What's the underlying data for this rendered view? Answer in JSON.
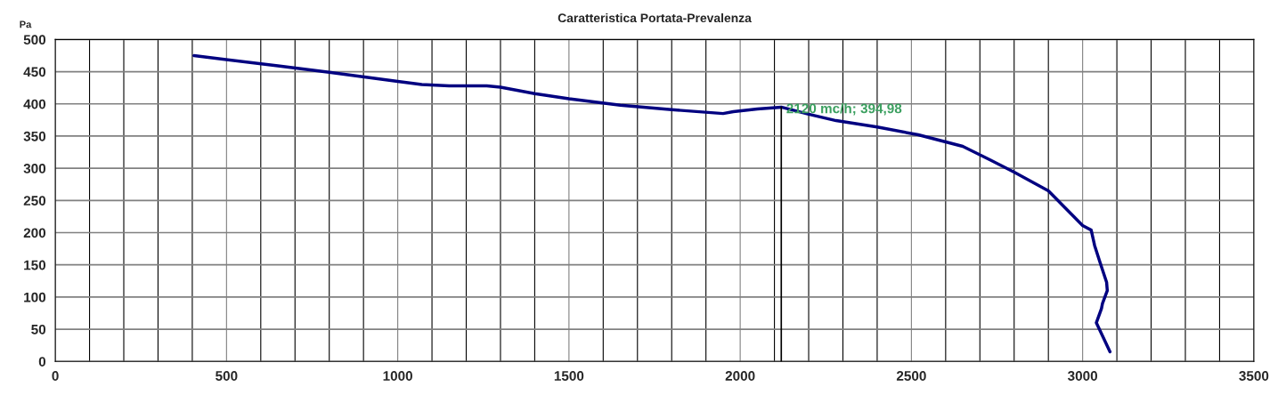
{
  "chart_data": {
    "type": "line",
    "title": "Caratteristica Portata-Prevalenza",
    "ylabel": "Pa",
    "xlim": [
      0,
      3500
    ],
    "xticks": [
      0,
      500,
      1000,
      1500,
      2000,
      2500,
      3000,
      3500
    ],
    "ylim": [
      0,
      500
    ],
    "yticks": [
      0,
      50,
      100,
      150,
      200,
      250,
      300,
      350,
      400,
      450,
      500
    ],
    "grid": true,
    "marker": "none",
    "line_style": "solid",
    "series": [
      {
        "color": "#000080",
        "x": [
          405,
          650,
          800,
          1000,
          1070,
          1150,
          1260,
          1300,
          1400,
          1500,
          1650,
          1800,
          1950,
          1980,
          2050,
          2120,
          2200,
          2280,
          2400,
          2520,
          2650,
          2730,
          2800,
          2900,
          2950,
          3000,
          3025,
          3035,
          3050,
          3070,
          3072,
          3058,
          3055,
          3040,
          3080
        ],
        "values": [
          475,
          459,
          449,
          435,
          430,
          428,
          428,
          426,
          416,
          408,
          398,
          391,
          385,
          388,
          392,
          394.98,
          384,
          374,
          364,
          352,
          334,
          313,
          294,
          265,
          238,
          211,
          204,
          180,
          155,
          123,
          110,
          90,
          82,
          60,
          15
        ]
      },
      {
        "color": "#000000",
        "x": [
          2120,
          2120
        ],
        "values": [
          0,
          394.98
        ]
      }
    ],
    "annotations": [
      {
        "text": "2120 mc/h; 394,98",
        "x": 2120,
        "y": 394.98
      }
    ]
  }
}
